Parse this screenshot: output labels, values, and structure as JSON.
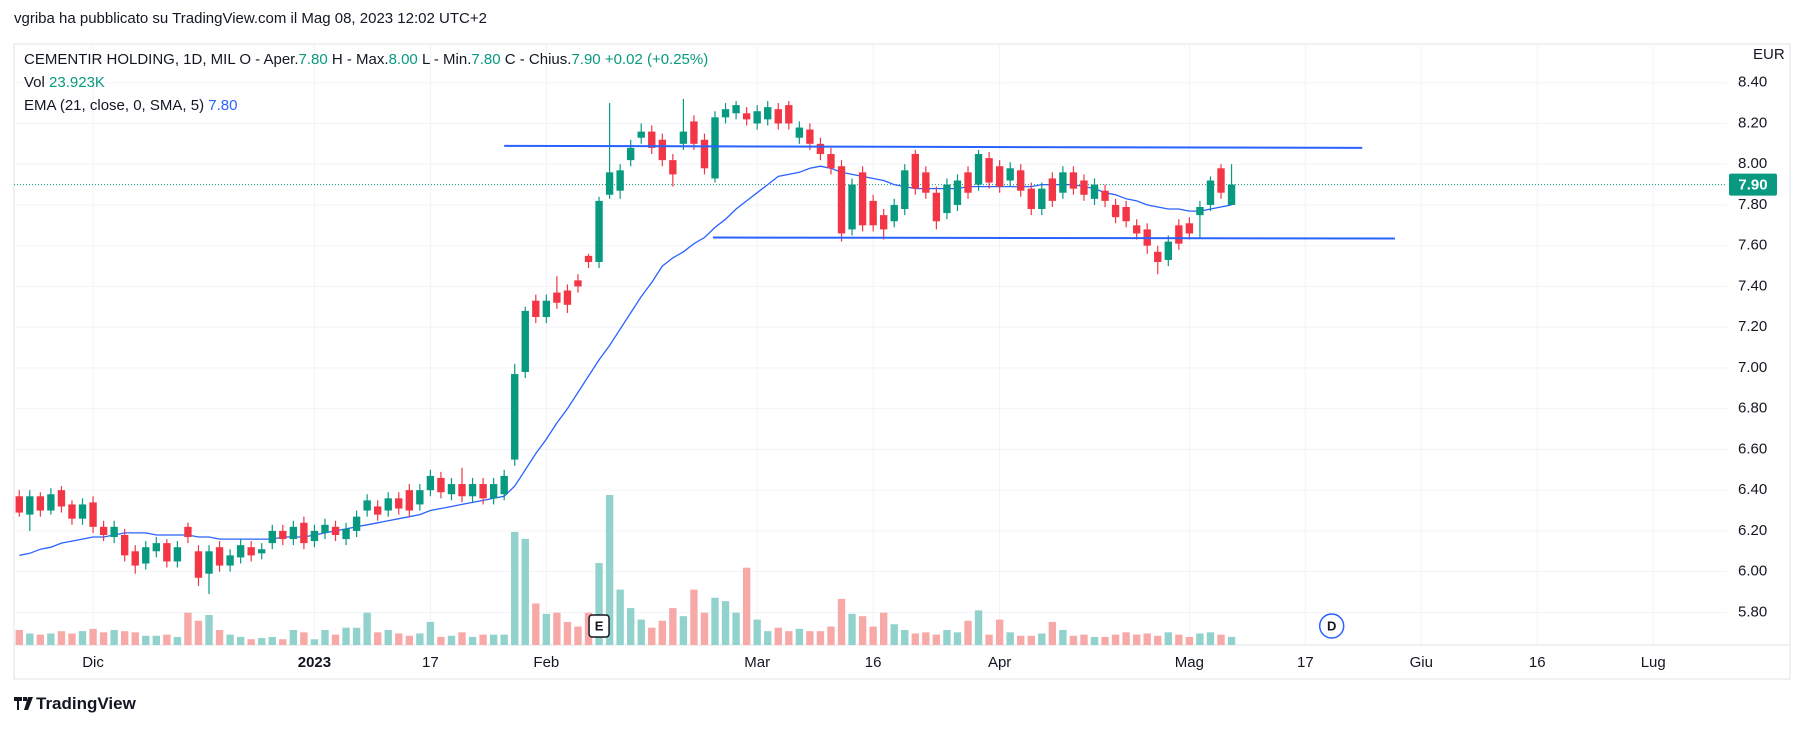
{
  "header": {
    "author_line": "vgriba ha pubblicato su TradingView.com il Mag 08, 2023 12:02 UTC+2",
    "footer": "TradingView"
  },
  "chart_data": {
    "type": "candlestick",
    "title": "CEMENTIR HOLDING, 1D, MIL",
    "legend": {
      "items": [
        {
          "label": "O - Aper.",
          "value": "7.80"
        },
        {
          "label": "H - Max.",
          "value": "8.00"
        },
        {
          "label": "L - Min.",
          "value": "7.80"
        },
        {
          "label": "C - Chius.",
          "value": "7.90"
        }
      ],
      "change": "+0.02 (+0.25%)"
    },
    "volume_legend": {
      "label": "Vol",
      "value": "23.923K"
    },
    "ema_legend": {
      "label": "EMA (21, close, 0, SMA, 5)",
      "value": "7.80"
    },
    "currency": "EUR",
    "up_color": "#089981",
    "down_color": "#f23645",
    "volume_up_color": "#92d2cc",
    "volume_down_color": "#f7a9a7",
    "grid": true,
    "xlim": [
      -0.5,
      162
    ],
    "xticks": [
      {
        "value": 7,
        "label": "Dic"
      },
      {
        "value": 28,
        "label": "2023"
      },
      {
        "value": 39,
        "label": "17"
      },
      {
        "value": 50,
        "label": "Feb"
      },
      {
        "value": 70,
        "label": "Mar"
      },
      {
        "value": 81,
        "label": "16"
      },
      {
        "value": 93,
        "label": "Apr"
      },
      {
        "value": 111,
        "label": "Mag"
      },
      {
        "value": 122,
        "label": "17"
      },
      {
        "value": 133,
        "label": "Giu"
      },
      {
        "value": 144,
        "label": "16"
      },
      {
        "value": 155,
        "label": "Lug"
      }
    ],
    "ylim": [
      5.64,
      8.59
    ],
    "yticks": [
      {
        "value": 5.8,
        "label": "5.80"
      },
      {
        "value": 6,
        "label": "6.00"
      },
      {
        "value": 6.2,
        "label": "6.20"
      },
      {
        "value": 6.4,
        "label": "6.40"
      },
      {
        "value": 6.6,
        "label": "6.60"
      },
      {
        "value": 6.8,
        "label": "6.80"
      },
      {
        "value": 7,
        "label": "7.00"
      },
      {
        "value": 7.2,
        "label": "7.20"
      },
      {
        "value": 7.4,
        "label": "7.40"
      },
      {
        "value": 7.6,
        "label": "7.60"
      },
      {
        "value": 7.8,
        "label": "7.80"
      },
      {
        "value": 8,
        "label": "8.00"
      },
      {
        "value": 8.2,
        "label": "8.20"
      },
      {
        "value": 8.4,
        "label": "8.40"
      }
    ],
    "last_price": {
      "value": 7.9,
      "label": "7.90"
    },
    "open": [
      6.37,
      6.28,
      6.37,
      6.3,
      6.4,
      6.33,
      6.26,
      6.34,
      6.22,
      6.17,
      6.18,
      6.1,
      6.04,
      6.1,
      6.14,
      6.05,
      6.22,
      6.1,
      5.99,
      6.12,
      6.03,
      6.07,
      6.12,
      6.09,
      6.14,
      6.2,
      6.16,
      6.24,
      6.15,
      6.19,
      6.22,
      6.16,
      6.2,
      6.3,
      6.32,
      6.3,
      6.36,
      6.4,
      6.33,
      6.4,
      6.46,
      6.38,
      6.43,
      6.37,
      6.43,
      6.36,
      6.38,
      6.55,
      6.98,
      7.33,
      7.25,
      7.37,
      7.38,
      7.43,
      7.55,
      7.52,
      7.85,
      7.87,
      8.02,
      8.13,
      8.16,
      8.12,
      8.02,
      8.1,
      8.21,
      8.12,
      7.93,
      8.23,
      8.25,
      8.25,
      8.2,
      8.22,
      8.27,
      8.29,
      8.13,
      8.17,
      8.1,
      8.05,
      7.99,
      7.68,
      7.96,
      7.82,
      7.75,
      7.72,
      7.78,
      8.05,
      7.96,
      7.86,
      7.76,
      7.8,
      7.96,
      7.9,
      8.03,
      7.99,
      7.92,
      7.97,
      7.88,
      7.78,
      7.93,
      7.86,
      7.96,
      7.92,
      7.83,
      7.87,
      7.8,
      7.79,
      7.7,
      7.68,
      7.57,
      7.53,
      7.7,
      7.71,
      7.75,
      7.8,
      7.98,
      7.8
    ],
    "high": [
      6.4,
      6.4,
      6.39,
      6.41,
      6.42,
      6.35,
      6.36,
      6.37,
      6.25,
      6.25,
      6.21,
      6.13,
      6.15,
      6.17,
      6.16,
      6.15,
      6.24,
      6.13,
      6.13,
      6.15,
      6.11,
      6.16,
      6.15,
      6.14,
      6.23,
      6.23,
      6.25,
      6.27,
      6.23,
      6.26,
      6.25,
      6.24,
      6.3,
      6.38,
      6.35,
      6.39,
      6.39,
      6.43,
      6.43,
      6.5,
      6.49,
      6.46,
      6.51,
      6.46,
      6.46,
      6.46,
      6.5,
      7.02,
      7.3,
      7.36,
      7.36,
      7.45,
      7.41,
      7.46,
      7.56,
      7.84,
      8.3,
      8.0,
      8.12,
      8.2,
      8.19,
      8.15,
      8.05,
      8.32,
      8.24,
      8.15,
      8.26,
      8.3,
      8.31,
      8.28,
      8.29,
      8.31,
      8.3,
      8.31,
      8.21,
      8.2,
      8.13,
      8.08,
      8.02,
      7.93,
      7.99,
      7.85,
      7.78,
      7.83,
      8.0,
      8.07,
      7.99,
      7.89,
      7.93,
      7.95,
      7.99,
      8.07,
      8.06,
      8.02,
      8.01,
      8.0,
      7.91,
      7.91,
      7.96,
      7.99,
      7.99,
      7.95,
      7.93,
      7.9,
      7.83,
      7.82,
      7.73,
      7.71,
      7.6,
      7.65,
      7.73,
      7.74,
      7.82,
      7.94,
      8.0,
      8.0
    ],
    "low": [
      6.27,
      6.2,
      6.27,
      6.28,
      6.29,
      6.23,
      6.23,
      6.19,
      6.15,
      6.14,
      6.05,
      5.99,
      6.01,
      6.07,
      6.02,
      6.02,
      6.14,
      5.93,
      5.89,
      6.0,
      6.0,
      6.04,
      6.05,
      6.06,
      6.11,
      6.13,
      6.13,
      6.11,
      6.12,
      6.16,
      6.15,
      6.13,
      6.17,
      6.27,
      6.25,
      6.27,
      6.28,
      6.27,
      6.3,
      6.37,
      6.36,
      6.35,
      6.34,
      6.34,
      6.33,
      6.33,
      6.35,
      6.52,
      6.95,
      7.22,
      7.22,
      7.29,
      7.27,
      7.37,
      7.49,
      7.49,
      7.83,
      7.83,
      7.99,
      8.1,
      8.05,
      7.99,
      7.89,
      8.07,
      8.07,
      7.95,
      7.91,
      8.2,
      8.22,
      8.19,
      8.17,
      8.19,
      8.17,
      8.17,
      8.1,
      8.07,
      8.02,
      7.95,
      7.62,
      7.65,
      7.67,
      7.67,
      7.63,
      7.69,
      7.75,
      7.85,
      7.83,
      7.68,
      7.73,
      7.77,
      7.83,
      7.87,
      7.88,
      7.86,
      7.89,
      7.84,
      7.75,
      7.75,
      7.79,
      7.83,
      7.85,
      7.82,
      7.8,
      7.79,
      7.71,
      7.69,
      7.63,
      7.56,
      7.46,
      7.5,
      7.58,
      7.63,
      7.64,
      7.77,
      7.83,
      7.8
    ],
    "close": [
      6.29,
      6.37,
      6.3,
      6.38,
      6.32,
      6.26,
      6.33,
      6.22,
      6.18,
      6.22,
      6.08,
      6.03,
      6.12,
      6.14,
      6.05,
      6.12,
      6.17,
      5.97,
      6.1,
      6.03,
      6.08,
      6.13,
      6.08,
      6.11,
      6.2,
      6.16,
      6.22,
      6.14,
      6.2,
      6.23,
      6.18,
      6.21,
      6.27,
      6.35,
      6.28,
      6.36,
      6.31,
      6.3,
      6.4,
      6.47,
      6.39,
      6.43,
      6.37,
      6.43,
      6.36,
      6.43,
      6.47,
      6.97,
      7.28,
      7.25,
      7.33,
      7.32,
      7.31,
      7.4,
      7.52,
      7.82,
      7.96,
      7.97,
      8.08,
      8.16,
      8.08,
      8.02,
      7.95,
      8.16,
      8.1,
      7.98,
      8.23,
      8.27,
      8.29,
      8.22,
      8.26,
      8.28,
      8.2,
      8.2,
      8.18,
      8.1,
      8.05,
      7.98,
      7.66,
      7.9,
      7.7,
      7.7,
      7.68,
      7.8,
      7.97,
      7.88,
      7.86,
      7.72,
      7.9,
      7.92,
      7.86,
      8.05,
      7.91,
      7.89,
      7.98,
      7.87,
      7.78,
      7.88,
      7.82,
      7.96,
      7.88,
      7.85,
      7.9,
      7.82,
      7.74,
      7.72,
      7.66,
      7.6,
      7.52,
      7.62,
      7.61,
      7.66,
      7.79,
      7.92,
      7.86,
      7.9
    ],
    "volume": [
      44200,
      34000,
      30600,
      34000,
      40800,
      34000,
      40800,
      47600,
      37400,
      44200,
      40800,
      37400,
      27200,
      27200,
      30600,
      23800,
      95200,
      71400,
      88400,
      44200,
      30600,
      23800,
      17000,
      20400,
      23800,
      17000,
      44200,
      37400,
      17000,
      44200,
      30600,
      51000,
      51000,
      95200,
      37400,
      44200,
      34000,
      27200,
      34000,
      68000,
      23800,
      27200,
      37400,
      23800,
      30600,
      30600,
      30600,
      333200,
      312800,
      122400,
      91800,
      95200,
      68000,
      54400,
      95200,
      241400,
      442000,
      163200,
      108800,
      74800,
      51000,
      71400,
      108800,
      85000,
      163200,
      95200,
      139400,
      129200,
      95200,
      227800,
      74800,
      40800,
      51000,
      40800,
      47600,
      40800,
      40800,
      54400,
      136000,
      91800,
      85000,
      54400,
      95200,
      61200,
      44200,
      34000,
      37400,
      30600,
      44200,
      37400,
      71400,
      102000,
      30600,
      74800,
      37400,
      27200,
      27200,
      34000,
      68000,
      44200,
      27200,
      30600,
      23800,
      23800,
      30600,
      37400,
      30600,
      34000,
      27200,
      37400,
      30600,
      23800,
      34000,
      37400,
      30600,
      23923
    ],
    "ema": {
      "color": "#2962ff",
      "values": [
        6.08,
        6.09,
        6.11,
        6.12,
        6.14,
        6.15,
        6.16,
        6.17,
        6.17,
        6.18,
        6.19,
        6.19,
        6.19,
        6.18,
        6.18,
        6.18,
        6.18,
        6.17,
        6.17,
        6.16,
        6.16,
        6.16,
        6.16,
        6.16,
        6.16,
        6.17,
        6.17,
        6.17,
        6.18,
        6.19,
        6.2,
        6.21,
        6.22,
        6.23,
        6.24,
        6.25,
        6.26,
        6.27,
        6.28,
        6.3,
        6.31,
        6.32,
        6.33,
        6.34,
        6.35,
        6.36,
        6.37,
        6.42,
        6.5,
        6.58,
        6.65,
        6.73,
        6.8,
        6.88,
        6.96,
        7.04,
        7.11,
        7.19,
        7.27,
        7.35,
        7.42,
        7.5,
        7.54,
        7.57,
        7.61,
        7.64,
        7.69,
        7.73,
        7.78,
        7.82,
        7.86,
        7.9,
        7.94,
        7.95,
        7.96,
        7.98,
        7.99,
        7.98,
        7.96,
        7.95,
        7.94,
        7.93,
        7.92,
        7.9,
        7.89,
        7.88,
        7.88,
        7.88,
        7.88,
        7.88,
        7.89,
        7.89,
        7.89,
        7.89,
        7.89,
        7.89,
        7.89,
        7.9,
        7.9,
        7.9,
        7.9,
        7.89,
        7.88,
        7.86,
        7.85,
        7.83,
        7.82,
        7.8,
        7.79,
        7.78,
        7.78,
        7.77,
        7.77,
        7.78,
        7.79,
        7.8
      ]
    },
    "trend_lines": [
      {
        "color": "#2962ff",
        "x": [
          46,
          127.4
        ],
        "y": [
          8.09,
          8.08
        ]
      },
      {
        "color": "#2962ff",
        "x": [
          65.8,
          130.5
        ],
        "y": [
          7.64,
          7.635
        ]
      }
    ],
    "events": [
      {
        "label": "E",
        "x": 55
      },
      {
        "label": "D",
        "x": 124.5
      }
    ]
  }
}
